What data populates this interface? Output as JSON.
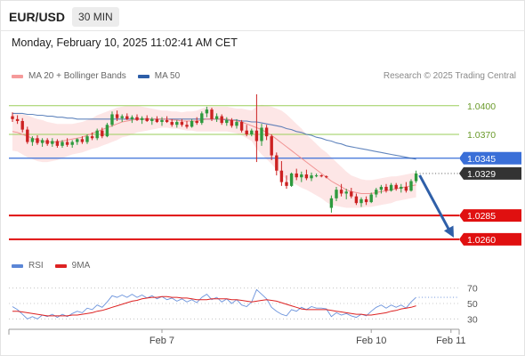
{
  "header": {
    "symbol": "EUR/USD",
    "timeframe": "30 MIN",
    "datetime": "Monday, February 10, 2025 11:02:41 AM CET"
  },
  "legend": {
    "ma20_label": "MA 20 + Bollinger Bands",
    "ma20_color": "#f08080",
    "ma50_label": "MA 50",
    "ma50_color": "#2d5ea8",
    "credit": "Research © 2025 Trading Central"
  },
  "rsi_legend": {
    "rsi_label": "RSI",
    "rsi_color": "#5b86d6",
    "ma9_label": "9MA",
    "ma9_color": "#dd2222"
  },
  "colors": {
    "up": "#2e9a3e",
    "down": "#cc2222",
    "target_line": "#9acd5a",
    "support_line": "#e01010",
    "pivot_line": "#3a6fd8",
    "current_tag": "#333333",
    "arrow": "#2f5fa8",
    "band_fill": "#fde2e2"
  },
  "chart_data": {
    "type": "candlestick",
    "symbol": "EUR/USD",
    "interval": "30 MIN",
    "ylim": [
      1.0245,
      1.0425
    ],
    "x_ticks": [
      {
        "label": "Feb 7",
        "index": 30
      },
      {
        "label": "Feb 10",
        "index": 72
      },
      {
        "label": "Feb 11",
        "index": 88
      }
    ],
    "candles": [
      [
        1.0389,
        1.0393,
        1.0383,
        1.0386
      ],
      [
        1.0386,
        1.039,
        1.0381,
        1.0384
      ],
      [
        1.0384,
        1.0387,
        1.0372,
        1.0375
      ],
      [
        1.0375,
        1.0378,
        1.036,
        1.0362
      ],
      [
        1.0362,
        1.0368,
        1.0358,
        1.0366
      ],
      [
        1.0366,
        1.0369,
        1.0359,
        1.0361
      ],
      [
        1.0361,
        1.0366,
        1.0357,
        1.0364
      ],
      [
        1.0364,
        1.0366,
        1.0358,
        1.036
      ],
      [
        1.036,
        1.0366,
        1.0357,
        1.0363
      ],
      [
        1.0363,
        1.0365,
        1.0356,
        1.0358
      ],
      [
        1.0358,
        1.0364,
        1.0356,
        1.0362
      ],
      [
        1.0362,
        1.0366,
        1.0357,
        1.0359
      ],
      [
        1.0359,
        1.0364,
        1.0356,
        1.0362
      ],
      [
        1.0362,
        1.0366,
        1.0359,
        1.0365
      ],
      [
        1.0365,
        1.0368,
        1.036,
        1.0362
      ],
      [
        1.0362,
        1.037,
        1.036,
        1.0368
      ],
      [
        1.0368,
        1.0372,
        1.0364,
        1.0366
      ],
      [
        1.0366,
        1.0376,
        1.0364,
        1.0374
      ],
      [
        1.0374,
        1.0377,
        1.0366,
        1.0368
      ],
      [
        1.0368,
        1.0382,
        1.0367,
        1.038
      ],
      [
        1.038,
        1.0394,
        1.0378,
        1.0391
      ],
      [
        1.0391,
        1.0395,
        1.0384,
        1.0387
      ],
      [
        1.0387,
        1.0391,
        1.0383,
        1.0389
      ],
      [
        1.0389,
        1.0392,
        1.0385,
        1.0386
      ],
      [
        1.0386,
        1.039,
        1.0382,
        1.0388
      ],
      [
        1.0388,
        1.0391,
        1.0384,
        1.0385
      ],
      [
        1.0385,
        1.0389,
        1.0381,
        1.0387
      ],
      [
        1.0387,
        1.039,
        1.0383,
        1.0384
      ],
      [
        1.0384,
        1.0388,
        1.038,
        1.0386
      ],
      [
        1.0386,
        1.0389,
        1.0382,
        1.0383
      ],
      [
        1.0383,
        1.0388,
        1.0379,
        1.0385
      ],
      [
        1.0385,
        1.0389,
        1.0382,
        1.0383
      ],
      [
        1.0383,
        1.0386,
        1.0378,
        1.038
      ],
      [
        1.038,
        1.0385,
        1.0377,
        1.0383
      ],
      [
        1.0383,
        1.0386,
        1.0378,
        1.038
      ],
      [
        1.038,
        1.0384,
        1.0376,
        1.0378
      ],
      [
        1.0378,
        1.0386,
        1.0377,
        1.0384
      ],
      [
        1.0384,
        1.0388,
        1.038,
        1.0382
      ],
      [
        1.0382,
        1.0394,
        1.038,
        1.0392
      ],
      [
        1.0392,
        1.0399,
        1.0388,
        1.0396
      ],
      [
        1.0396,
        1.0398,
        1.0384,
        1.0386
      ],
      [
        1.0386,
        1.0392,
        1.0383,
        1.0389
      ],
      [
        1.0389,
        1.0391,
        1.038,
        1.0382
      ],
      [
        1.0382,
        1.0388,
        1.0379,
        1.0385
      ],
      [
        1.0385,
        1.0387,
        1.0377,
        1.0379
      ],
      [
        1.0379,
        1.0386,
        1.0376,
        1.0383
      ],
      [
        1.0383,
        1.0385,
        1.0372,
        1.0374
      ],
      [
        1.0374,
        1.038,
        1.0368,
        1.037
      ],
      [
        1.037,
        1.0376,
        1.0368,
        1.0374
      ],
      [
        1.0374,
        1.0412,
        1.0341,
        1.0363
      ],
      [
        1.0363,
        1.0381,
        1.0358,
        1.0377
      ],
      [
        1.0377,
        1.038,
        1.0364,
        1.0368
      ],
      [
        1.0368,
        1.037,
        1.0343,
        1.0348
      ],
      [
        1.0348,
        1.0351,
        1.0327,
        1.0332
      ],
      [
        1.0332,
        1.0342,
        1.0316,
        1.032
      ],
      [
        1.032,
        1.0327,
        1.0313,
        1.0316
      ],
      [
        1.0316,
        1.033,
        1.0315,
        1.0329
      ],
      [
        1.0329,
        1.0334,
        1.0322,
        1.0325
      ],
      [
        1.0325,
        1.0331,
        1.032,
        1.0328
      ],
      [
        1.0328,
        1.0333,
        1.0322,
        1.0324
      ],
      [
        1.0324,
        1.033,
        1.0321,
        1.0327
      ],
      [
        1.0327,
        1.0329,
        1.0325,
        1.0327
      ],
      [
        1.0327,
        1.0328,
        1.0325,
        1.0326
      ],
      [
        1.0326,
        1.0327,
        1.0324,
        1.0325
      ],
      [
        1.0293,
        1.0306,
        1.0288,
        1.0303
      ],
      [
        1.0303,
        1.0315,
        1.03,
        1.0312
      ],
      [
        1.0312,
        1.0318,
        1.0305,
        1.0308
      ],
      [
        1.0308,
        1.0313,
        1.0302,
        1.031
      ],
      [
        1.031,
        1.0314,
        1.0303,
        1.0305
      ],
      [
        1.0305,
        1.0308,
        1.0296,
        1.0298
      ],
      [
        1.0298,
        1.0304,
        1.0294,
        1.0302
      ],
      [
        1.0302,
        1.0305,
        1.0296,
        1.0299
      ],
      [
        1.0299,
        1.0309,
        1.0298,
        1.0307
      ],
      [
        1.0307,
        1.0314,
        1.0304,
        1.0312
      ],
      [
        1.0312,
        1.0317,
        1.0308,
        1.0315
      ],
      [
        1.0315,
        1.0318,
        1.0309,
        1.0311
      ],
      [
        1.0311,
        1.0319,
        1.031,
        1.0317
      ],
      [
        1.0317,
        1.0319,
        1.0311,
        1.0313
      ],
      [
        1.0313,
        1.0318,
        1.0309,
        1.0315
      ],
      [
        1.0315,
        1.032,
        1.0309,
        1.0311
      ],
      [
        1.0311,
        1.0323,
        1.031,
        1.0321
      ],
      [
        1.0321,
        1.0332,
        1.0319,
        1.0329
      ]
    ],
    "ma20": [
      1.0373,
      1.0372,
      1.037,
      1.0368,
      1.0366,
      1.0364,
      1.0363,
      1.0362,
      1.0362,
      1.0362,
      1.0363,
      1.0364,
      1.0365,
      1.0366,
      1.0367,
      1.0369,
      1.0371,
      1.0373,
      1.0375,
      1.0377,
      1.0379,
      1.0381,
      1.0383,
      1.0384,
      1.0385,
      1.0386,
      1.0386,
      1.0386,
      1.0386,
      1.0386,
      1.0386,
      1.0386,
      1.0385,
      1.0385,
      1.0384,
      1.0384,
      1.0384,
      1.0384,
      1.0385,
      1.0386,
      1.0386,
      1.0386,
      1.0386,
      1.0386,
      1.0385,
      1.0384,
      1.0383,
      1.0381,
      1.0379,
      1.0377,
      1.0375,
      1.0372,
      1.0369,
      1.0365,
      1.0361,
      1.0357,
      1.0353,
      1.0349,
      1.0345,
      1.0341,
      1.0337,
      1.0333,
      1.0329,
      1.0325,
      1.0321,
      1.0318,
      1.0315,
      1.0312,
      1.031,
      1.0309,
      1.0308,
      1.0308,
      1.0308,
      1.0309,
      1.031,
      1.0311,
      1.0312,
      1.0313,
      1.0314,
      1.0315,
      1.0316,
      1.0317
    ],
    "bb_width": [
      0.002,
      0.002,
      0.0021,
      0.0022,
      0.0022,
      0.0022,
      0.0022,
      0.0021,
      0.002,
      0.0019,
      0.0018,
      0.0017,
      0.0016,
      0.0016,
      0.0016,
      0.0016,
      0.0016,
      0.0017,
      0.0017,
      0.0017,
      0.0017,
      0.0017,
      0.0016,
      0.0016,
      0.0015,
      0.0014,
      0.0013,
      0.0012,
      0.0011,
      0.001,
      0.0009,
      0.0009,
      0.0009,
      0.0009,
      0.0009,
      0.001,
      0.001,
      0.0011,
      0.0012,
      0.0013,
      0.0013,
      0.0013,
      0.0013,
      0.0013,
      0.0013,
      0.0013,
      0.0014,
      0.0015,
      0.0016,
      0.0022,
      0.0026,
      0.0028,
      0.003,
      0.0032,
      0.0034,
      0.0034,
      0.0033,
      0.0032,
      0.0031,
      0.0029,
      0.0028,
      0.0027,
      0.0026,
      0.0026,
      0.0025,
      0.0023,
      0.0021,
      0.0019,
      0.0017,
      0.0016,
      0.0015,
      0.0014,
      0.0014,
      0.0014,
      0.0014,
      0.0014,
      0.0014,
      0.0013,
      0.0013,
      0.0013,
      0.0013,
      0.0013
    ],
    "ma50": [
      1.0392,
      1.0392,
      1.0392,
      1.0391,
      1.0391,
      1.039,
      1.039,
      1.0389,
      1.0389,
      1.0388,
      1.0388,
      1.0387,
      1.0387,
      1.0386,
      1.0386,
      1.0386,
      1.0386,
      1.0386,
      1.0386,
      1.0386,
      1.0386,
      1.0386,
      1.0386,
      1.0386,
      1.0386,
      1.0386,
      1.0386,
      1.0386,
      1.0386,
      1.0386,
      1.0386,
      1.0386,
      1.0386,
      1.0386,
      1.0386,
      1.0386,
      1.0386,
      1.0386,
      1.0386,
      1.0386,
      1.0386,
      1.0386,
      1.0386,
      1.0385,
      1.0385,
      1.0385,
      1.0384,
      1.0384,
      1.0383,
      1.0383,
      1.0382,
      1.0381,
      1.038,
      1.0379,
      1.0378,
      1.0376,
      1.0375,
      1.0373,
      1.0372,
      1.037,
      1.0369,
      1.0367,
      1.0366,
      1.0364,
      1.0363,
      1.0361,
      1.036,
      1.0358,
      1.0357,
      1.0356,
      1.0355,
      1.0354,
      1.0353,
      1.0352,
      1.0351,
      1.035,
      1.0349,
      1.0348,
      1.0347,
      1.0346,
      1.0345,
      1.0344
    ],
    "levels": [
      {
        "label": "1.0400",
        "value": 1.04,
        "kind": "resistance"
      },
      {
        "label": "1.0370",
        "value": 1.037,
        "kind": "resistance"
      },
      {
        "label": "1.0345",
        "value": 1.0345,
        "kind": "pivot"
      },
      {
        "label": "1.0329",
        "value": 1.0329,
        "kind": "current"
      },
      {
        "label": "1.0285",
        "value": 1.0285,
        "kind": "support"
      },
      {
        "label": "1.0260",
        "value": 1.026,
        "kind": "support"
      }
    ],
    "forecast_arrow": {
      "from": 1.0329,
      "to": 1.026
    },
    "rsi": {
      "ylim": [
        20,
        80
      ],
      "ticks": [
        "70",
        "50",
        "30"
      ],
      "levels": [
        70,
        50,
        30
      ],
      "rsi_values": [
        46,
        42,
        36,
        30,
        33,
        30,
        35,
        33,
        36,
        32,
        36,
        33,
        37,
        40,
        38,
        44,
        42,
        48,
        45,
        52,
        60,
        58,
        61,
        58,
        62,
        58,
        61,
        57,
        60,
        56,
        59,
        55,
        57,
        53,
        56,
        52,
        55,
        51,
        58,
        62,
        55,
        58,
        52,
        56,
        50,
        55,
        48,
        46,
        52,
        68,
        62,
        56,
        45,
        40,
        36,
        34,
        42,
        40,
        45,
        42,
        46,
        44,
        44,
        43,
        33,
        38,
        35,
        37,
        34,
        32,
        36,
        34,
        40,
        45,
        48,
        44,
        48,
        45,
        48,
        44,
        52,
        58
      ],
      "ma9_values": [
        40,
        40,
        39,
        38,
        37,
        36,
        35,
        34,
        34,
        34,
        34,
        34,
        35,
        35,
        36,
        37,
        38,
        40,
        41,
        43,
        45,
        47,
        49,
        51,
        53,
        54,
        56,
        57,
        58,
        58,
        59,
        59,
        58,
        58,
        57,
        57,
        56,
        55,
        55,
        55,
        56,
        56,
        56,
        56,
        55,
        55,
        54,
        53,
        52,
        53,
        54,
        55,
        54,
        53,
        51,
        49,
        47,
        45,
        43,
        42,
        42,
        42,
        42,
        42,
        41,
        40,
        39,
        38,
        37,
        36,
        36,
        35,
        35,
        36,
        37,
        38,
        40,
        41,
        43,
        44,
        45,
        47
      ]
    }
  }
}
